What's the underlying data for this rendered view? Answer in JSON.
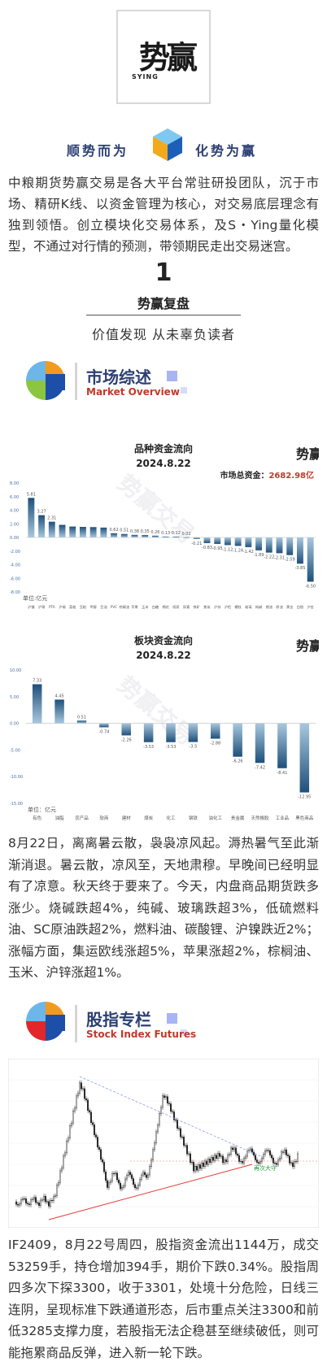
{
  "brand": {
    "logo_text": "势赢",
    "logo_sub": "SYING",
    "slogan_left": "顺势而为",
    "slogan_right": "化势为赢"
  },
  "intro": "中粮期货势赢交易是各大平台常驻研投团队，沉于市场、精研K线、以资金管理为核心，对交易底层理念有独到领悟。创立模块化交易体系，及S・Ying量化模型，不通过对行情的预测，带领期民走出交易迷宫。",
  "section": {
    "number": "1",
    "title": "势赢复盘",
    "motto": "价值发现 从未辜负读者"
  },
  "market_head": {
    "zh": "市场综述",
    "en": "Market Overview"
  },
  "index_head": {
    "zh": "股指专栏",
    "en": "Stock Index Futures"
  },
  "chart_data": [
    {
      "type": "bar",
      "title": "品种资金流向",
      "subtitle": "2024.8.22",
      "total_label": "市场总资金：",
      "total_value": "2682.98亿",
      "unit_note": "单位:亿元",
      "ylim": [
        -8,
        8
      ],
      "yticks": [
        "8.00",
        "6.00",
        "4.00",
        "2.00",
        "0.00",
        "-2.00",
        "-4.00",
        "-6.00",
        "-8.00"
      ],
      "values": [
        5.81,
        3.27,
        2.31,
        1.85,
        1.6,
        1.55,
        1.52,
        1.45,
        0.62,
        0.51,
        0.38,
        0.35,
        0.26,
        0.13,
        0.12,
        0.02,
        -0.21,
        -0.83,
        -0.95,
        -1.12,
        -1.24,
        -1.42,
        -1.89,
        -2.22,
        -2.31,
        -2.59,
        -3.85,
        -6.5
      ],
      "data_labels": [
        "5.81",
        "3.27",
        "2.31",
        "",
        "",
        "",
        "",
        "",
        "0.62",
        "0.51",
        "0.38",
        "0.35",
        "0.26",
        "0.13",
        "0.12",
        "0.02",
        "-0.21",
        "-0.83",
        "-0.95",
        "-1.12",
        "-1.24",
        "-1.42",
        "-1.89",
        "-2.22",
        "-2.31",
        "-2.59",
        "-3.85",
        "-6.50"
      ],
      "categories": [
        "沪镍",
        "沪铜",
        "PTA",
        "沪锡",
        "菜粕",
        "豆粕",
        "甲醇",
        "豆油",
        "PVC",
        "棕榈油",
        "苹果",
        "玉米",
        "白糖",
        "棉花",
        "纸浆",
        "尿素",
        "铁矿",
        "焦炭",
        "沪锌",
        "沪铝",
        "螺纹",
        "玻璃",
        "纯碱",
        "燃油",
        "原油",
        "黄金",
        "白银",
        "沪金"
      ]
    },
    {
      "type": "bar",
      "title": "板块资金流向",
      "subtitle": "2024.8.22",
      "unit_note": "单位：亿元",
      "ylim": [
        -15,
        10
      ],
      "yticks": [
        "10.00",
        "5.00",
        "0.00",
        "-5.00",
        "-10.00",
        "-15.00"
      ],
      "values": [
        7.33,
        4.45,
        0.51,
        -0.74,
        -2.26,
        -3.53,
        -3.53,
        -3.5,
        -2.88,
        -6.26,
        -7.42,
        -8.41,
        -12.95
      ],
      "data_labels": [
        "7.33",
        "4.45",
        "0.51",
        "-0.74",
        "-2.26",
        "-3.53",
        "-3.53",
        "-3.5",
        "-2.88",
        "-6.26",
        "-7.42",
        "-8.41",
        "-12.95"
      ],
      "categories": [
        "有色",
        "油脂",
        "农产品",
        "软商",
        "建材",
        "煤炭",
        "化工",
        "钢铁",
        "油化工",
        "贵金属",
        "天然橡胶",
        "工业品",
        "黑色商品"
      ]
    }
  ],
  "para1": "8月22日，离离暑云散，袅袅凉风起。溽热暑气至此渐渐消退。暑云散，凉风至，天地肃穆。早晚间已经明显有了凉意。秋天终于要来了。今天，内盘商品期货跌多涨少。烧碱跌超4%，纯碱、玻璃跌超3%，低硫燃料油、SC原油跌超2%，燃料油、碳酸锂、沪镍跌近2%；涨幅方面，集运欧线涨超5%，苹果涨超2%，棕榈油、玉米、沪锌涨超1%。",
  "kline": {
    "label_low": "再次大守"
  },
  "para2": "IF2409，8月22号周四，股指资金流出1144万，成交53259手，持仓增加394手，期价下跌0.34%。股指周四多次下探3300，收于3301，处境十分危险，日线三连阴，呈现标准下跌通道形态，后市重点关注3300和前低3285支撑力度，若股指无法企稳甚至继续破低，则可能拖累商品反弹，进入新一轮下跌。",
  "watermark": "势赢交易"
}
